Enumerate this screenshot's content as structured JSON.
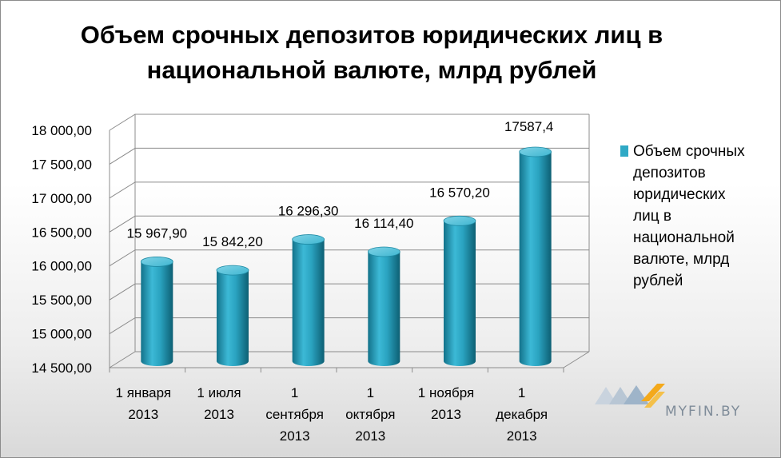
{
  "title_lines": [
    "Объем срочных депозитов юридических лиц в",
    "национальной валюте, млрд рублей"
  ],
  "chart_data": {
    "type": "bar",
    "title": "Объем срочных депозитов юридических лиц в национальной валюте, млрд рублей",
    "categories": [
      [
        "1 января",
        "2013"
      ],
      [
        "1 июля",
        "2013"
      ],
      [
        "1",
        "сентября",
        "2013"
      ],
      [
        "1",
        "октября",
        "2013"
      ],
      [
        "1 ноября",
        "2013"
      ],
      [
        "1",
        "декабря",
        "2013"
      ]
    ],
    "series": [
      {
        "name": "Объем срочных депозитов юридических лиц в национальной валюте, млрд рублей",
        "values": [
          15967.9,
          15842.2,
          16296.3,
          16114.4,
          16570.2,
          17587.4
        ],
        "color": "#2fa9c5"
      }
    ],
    "data_labels": [
      "15 967,90",
      "15 842,20",
      "16 296,30",
      "16 114,40",
      "16 570,20",
      "17587,4"
    ],
    "yticks": [
      "14 500,00",
      "15 000,00",
      "15 500,00",
      "16 000,00",
      "16 500,00",
      "17 000,00",
      "17 500,00",
      "18 000,00"
    ],
    "ylim": [
      14500,
      18000
    ],
    "grid": true,
    "legend_position": "right",
    "shape": "3d-cylinder"
  },
  "legend_lines": [
    "Объем срочных",
    "депозитов",
    "юридических",
    "лиц в",
    "национальной",
    "валюте, млрд",
    "рублей"
  ],
  "watermark_text": "MYFIN.BY"
}
